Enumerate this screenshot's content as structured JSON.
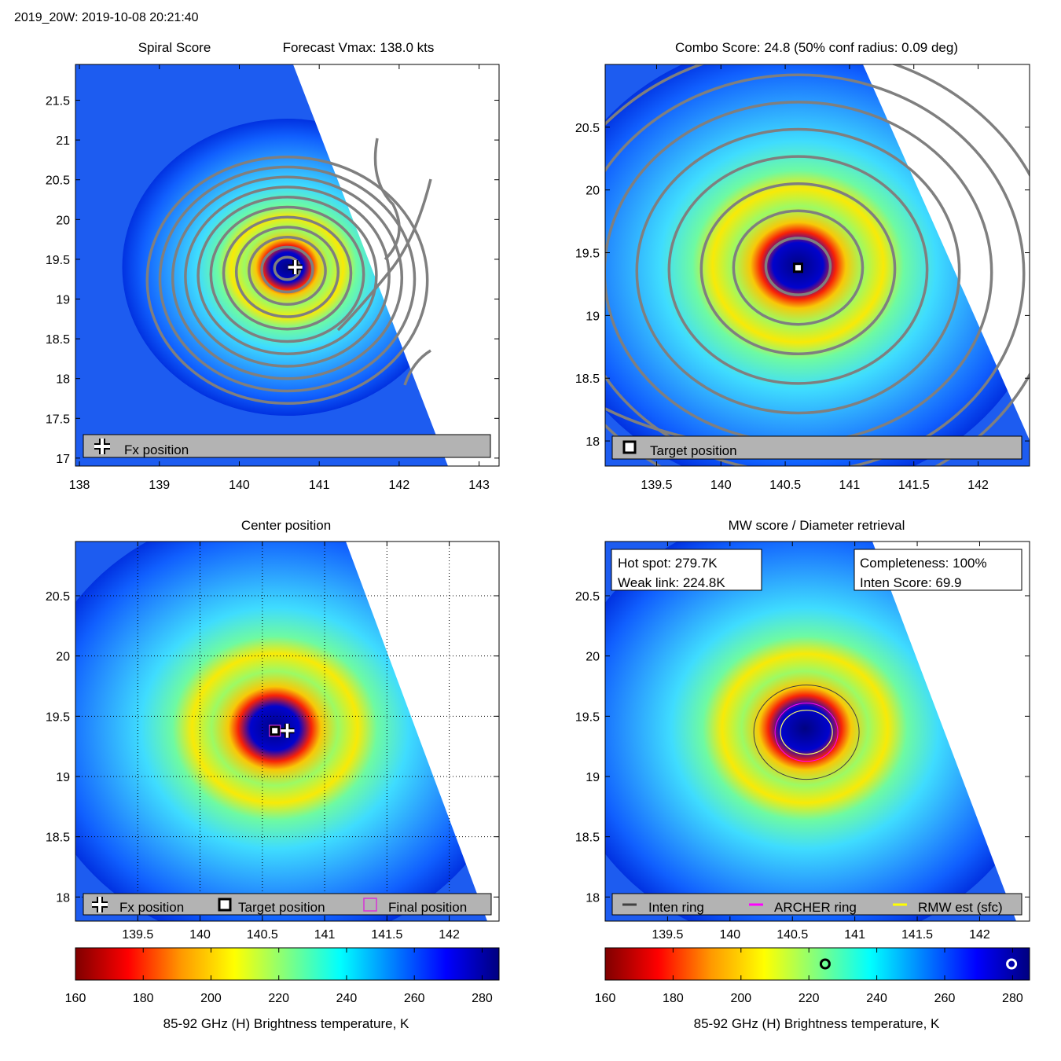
{
  "page_title": "2019_20W: 2019-10-08 20:21:40",
  "colormap": [
    "#7f0000",
    "#ff0000",
    "#ff9900",
    "#ffff00",
    "#80ff80",
    "#00ffff",
    "#0080ff",
    "#0000ff",
    "#00007f"
  ],
  "chart_data": [
    {
      "id": "spiral",
      "type": "heatmap",
      "title_left": "Spiral Score",
      "title_right": "Forecast Vmax: 138.0 kts",
      "x_ticks": [
        "138",
        "139",
        "140",
        "141",
        "142",
        "143"
      ],
      "x_tick_values": [
        138,
        139,
        140,
        141,
        142,
        143
      ],
      "y_ticks": [
        "17",
        "17.5",
        "18",
        "18.5",
        "19",
        "19.5",
        "20",
        "20.5",
        "21",
        "21.5"
      ],
      "y_tick_values": [
        17,
        17.5,
        18,
        18.5,
        19,
        19.5,
        20,
        20.5,
        21,
        21.5
      ],
      "xlim": [
        137.95,
        143.25
      ],
      "ylim": [
        16.9,
        21.95
      ],
      "center": [
        140.6,
        19.4
      ],
      "fx_position": [
        140.7,
        19.4
      ],
      "legend": [
        "Fx position"
      ]
    },
    {
      "id": "combo",
      "type": "heatmap",
      "title": "Combo Score: 24.8  (50% conf radius: 0.09 deg)",
      "x_ticks": [
        "139.5",
        "140",
        "140.5",
        "141",
        "141.5",
        "142"
      ],
      "x_tick_values": [
        139.5,
        140,
        140.5,
        141,
        141.5,
        142
      ],
      "y_ticks": [
        "18",
        "18.5",
        "19",
        "19.5",
        "20",
        "20.5"
      ],
      "y_tick_values": [
        18,
        18.5,
        19,
        19.5,
        20,
        20.5
      ],
      "xlim": [
        139.1,
        142.4
      ],
      "ylim": [
        17.8,
        21.0
      ],
      "center": [
        140.6,
        19.4
      ],
      "target_position": [
        140.6,
        19.38
      ],
      "legend": [
        "Target position"
      ]
    },
    {
      "id": "center",
      "type": "heatmap",
      "title": "Center position",
      "x_ticks": [
        "139.5",
        "140",
        "140.5",
        "141",
        "141.5",
        "142"
      ],
      "x_tick_values": [
        139.5,
        140,
        140.5,
        141,
        141.5,
        142
      ],
      "y_ticks": [
        "18",
        "18.5",
        "19",
        "19.5",
        "20",
        "20.5"
      ],
      "y_tick_values": [
        18,
        18.5,
        19,
        19.5,
        20,
        20.5
      ],
      "xlim": [
        139.0,
        142.4
      ],
      "ylim": [
        17.8,
        20.95
      ],
      "center": [
        140.6,
        19.4
      ],
      "fx_position": [
        140.7,
        19.38
      ],
      "target_position": [
        140.6,
        19.38
      ],
      "final_position": [
        140.6,
        19.38
      ],
      "legend": [
        "Fx position",
        "Target position",
        "Final position"
      ]
    },
    {
      "id": "mw",
      "type": "heatmap",
      "title": "MW score / Diameter retrieval",
      "x_ticks": [
        "139.5",
        "140",
        "140.5",
        "141",
        "141.5",
        "142"
      ],
      "x_tick_values": [
        139.5,
        140,
        140.5,
        141,
        141.5,
        142
      ],
      "y_ticks": [
        "18",
        "18.5",
        "19",
        "19.5",
        "20",
        "20.5"
      ],
      "y_tick_values": [
        18,
        18.5,
        19,
        19.5,
        20,
        20.5
      ],
      "xlim": [
        139.0,
        142.4
      ],
      "ylim": [
        17.8,
        20.95
      ],
      "center": [
        140.6,
        19.4
      ],
      "hot_spot_label": "Hot spot: 279.7K",
      "weak_link_label": "Weak link: 224.8K",
      "completeness_label": "Completeness: 100%",
      "inten_score_label": "Inten Score: 69.9",
      "hot_spot_value": 279.7,
      "weak_link_value": 224.8,
      "legend": [
        "Inten ring",
        "ARCHER ring",
        "RMW est (sfc)"
      ]
    }
  ],
  "colorbars": [
    {
      "id": "cb-left",
      "ticks": [
        "160",
        "180",
        "200",
        "220",
        "240",
        "260",
        "280"
      ],
      "tick_values": [
        160,
        180,
        200,
        220,
        240,
        260,
        280
      ],
      "range": [
        160,
        285
      ],
      "label": "85-92 GHz (H) Brightness temperature, K"
    },
    {
      "id": "cb-right",
      "ticks": [
        "160",
        "180",
        "200",
        "220",
        "240",
        "260",
        "280"
      ],
      "tick_values": [
        160,
        180,
        200,
        220,
        240,
        260,
        280
      ],
      "range": [
        160,
        285
      ],
      "label": "85-92 GHz (H) Brightness temperature, K",
      "markers": [
        224.8,
        279.7
      ]
    }
  ]
}
